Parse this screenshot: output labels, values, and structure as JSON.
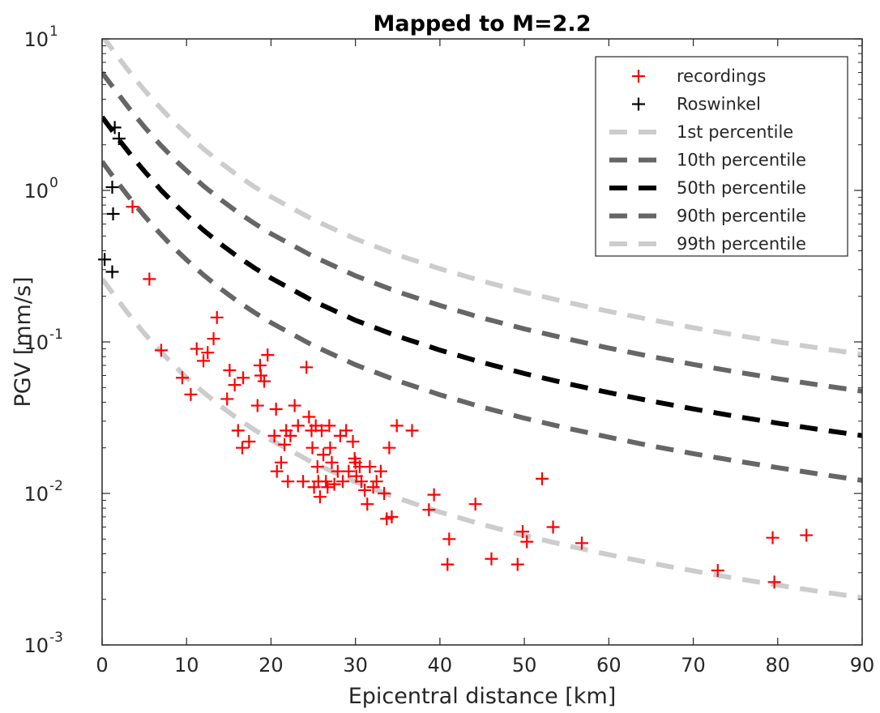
{
  "chart_data": {
    "type": "scatter",
    "title": "Mapped to M=2.2",
    "xlabel": "Epicentral distance [km]",
    "ylabel": "PGV [mm/s]",
    "xlim": [
      0,
      90
    ],
    "ylim": [
      0.001,
      10
    ],
    "yscale": "log",
    "grid": false,
    "legend_position": "top-right",
    "x_ticks": [
      0,
      10,
      20,
      30,
      40,
      50,
      60,
      70,
      80,
      90
    ],
    "y_ticks": [
      {
        "value": 10,
        "base": "10",
        "exp": "1"
      },
      {
        "value": 1,
        "base": "10",
        "exp": "0"
      },
      {
        "value": 0.1,
        "base": "10",
        "exp": "-1"
      },
      {
        "value": 0.01,
        "base": "10",
        "exp": "-2"
      },
      {
        "value": 0.001,
        "base": "10",
        "exp": "-3"
      }
    ],
    "series": [
      {
        "name": "recordings",
        "kind": "marker",
        "color": "#ff0000",
        "x": [
          3.6,
          5.6,
          7.0,
          9.5,
          10.5,
          11.2,
          12.0,
          12.5,
          13.2,
          13.6,
          14.8,
          15.1,
          15.7,
          16.1,
          16.6,
          16.7,
          17.4,
          18.4,
          18.7,
          18.8,
          19.2,
          19.6,
          20.4,
          20.6,
          20.7,
          21.2,
          21.6,
          21.8,
          22.0,
          22.3,
          22.8,
          23.2,
          23.8,
          24.2,
          24.5,
          24.8,
          24.9,
          25.1,
          25.3,
          25.5,
          25.6,
          25.8,
          26.0,
          26.2,
          26.5,
          26.7,
          26.9,
          27.0,
          27.2,
          27.5,
          27.9,
          28.2,
          28.5,
          28.9,
          29.2,
          29.7,
          29.9,
          30.0,
          30.1,
          30.5,
          30.7,
          31.1,
          31.4,
          31.7,
          32.1,
          32.5,
          33.0,
          33.4,
          33.7,
          34.0,
          34.3,
          34.9,
          36.7,
          38.7,
          39.3,
          41.1,
          40.9,
          44.2,
          46.1,
          49.2,
          49.8,
          50.3,
          52.1,
          53.4,
          56.8,
          72.9,
          79.4,
          79.6,
          83.4
        ],
        "y": [
          0.78,
          0.26,
          0.088,
          0.058,
          0.045,
          0.09,
          0.075,
          0.085,
          0.105,
          0.145,
          0.042,
          0.065,
          0.052,
          0.026,
          0.02,
          0.058,
          0.022,
          0.038,
          0.07,
          0.06,
          0.055,
          0.082,
          0.024,
          0.036,
          0.014,
          0.016,
          0.021,
          0.026,
          0.012,
          0.024,
          0.038,
          0.028,
          0.012,
          0.068,
          0.032,
          0.026,
          0.02,
          0.011,
          0.028,
          0.015,
          0.012,
          0.0095,
          0.026,
          0.018,
          0.012,
          0.011,
          0.028,
          0.02,
          0.016,
          0.0115,
          0.014,
          0.024,
          0.012,
          0.026,
          0.014,
          0.022,
          0.017,
          0.016,
          0.013,
          0.015,
          0.012,
          0.0105,
          0.0085,
          0.015,
          0.011,
          0.012,
          0.014,
          0.01,
          0.0068,
          0.02,
          0.007,
          0.028,
          0.026,
          0.0078,
          0.0098,
          0.005,
          0.0034,
          0.0085,
          0.0037,
          0.0034,
          0.0056,
          0.0048,
          0.0125,
          0.006,
          0.0047,
          0.0031,
          0.0051,
          0.0026,
          0.0053
        ]
      },
      {
        "name": "Roswinkel",
        "kind": "marker",
        "color": "#000000",
        "x": [
          1.5,
          2.0,
          1.2,
          1.3,
          0.3,
          1.2
        ],
        "y": [
          2.6,
          2.2,
          1.05,
          0.7,
          0.35,
          0.29
        ]
      },
      {
        "name": "1st percentile",
        "kind": "line",
        "color": "#cccccc",
        "x": [
          0,
          0.5,
          1,
          2,
          3,
          4,
          5,
          6,
          7,
          8,
          9,
          10,
          12,
          14,
          16,
          18,
          20,
          25,
          30,
          35,
          40,
          45,
          50,
          55,
          60,
          65,
          70,
          75,
          80,
          85,
          90
        ],
        "y": [
          0.26,
          0.239,
          0.219,
          0.185,
          0.156,
          0.133,
          0.114,
          0.0985,
          0.0856,
          0.0749,
          0.066,
          0.0584,
          0.0465,
          0.0378,
          0.0313,
          0.0264,
          0.0225,
          0.0159,
          0.0119,
          0.00931,
          0.00753,
          0.00624,
          0.00528,
          0.00453,
          0.00394,
          0.00347,
          0.00308,
          0.00275,
          0.00248,
          0.00225,
          0.00205
        ]
      },
      {
        "name": "10th percentile",
        "kind": "line",
        "color": "#666666",
        "x": [
          0,
          0.5,
          1,
          2,
          3,
          4,
          5,
          6,
          7,
          8,
          9,
          10,
          12,
          14,
          16,
          18,
          20,
          25,
          30,
          35,
          40,
          45,
          50,
          55,
          60,
          65,
          70,
          75,
          80,
          85,
          90
        ],
        "y": [
          1.55,
          1.42,
          1.3,
          1.1,
          0.93,
          0.792,
          0.68,
          0.587,
          0.51,
          0.446,
          0.393,
          0.348,
          0.277,
          0.225,
          0.186,
          0.157,
          0.134,
          0.0946,
          0.0707,
          0.0554,
          0.0448,
          0.0371,
          0.0314,
          0.027,
          0.0235,
          0.0206,
          0.0183,
          0.0164,
          0.0148,
          0.0134,
          0.0122
        ]
      },
      {
        "name": "50th percentile",
        "kind": "line",
        "color": "#000000",
        "x": [
          0,
          0.5,
          1,
          2,
          3,
          4,
          5,
          6,
          7,
          8,
          9,
          10,
          12,
          14,
          16,
          18,
          20,
          25,
          30,
          35,
          40,
          45,
          50,
          55,
          60,
          65,
          70,
          75,
          80,
          85,
          90
        ],
        "y": [
          3.05,
          2.8,
          2.57,
          2.16,
          1.83,
          1.56,
          1.34,
          1.16,
          1.0,
          0.879,
          0.774,
          0.686,
          0.546,
          0.444,
          0.367,
          0.309,
          0.264,
          0.186,
          0.139,
          0.109,
          0.0883,
          0.0732,
          0.0619,
          0.0532,
          0.0463,
          0.0407,
          0.0361,
          0.0323,
          0.0291,
          0.0264,
          0.0241
        ]
      },
      {
        "name": "90th percentile",
        "kind": "line",
        "color": "#666666",
        "x": [
          0,
          0.5,
          1,
          2,
          3,
          4,
          5,
          6,
          7,
          8,
          9,
          10,
          12,
          14,
          16,
          18,
          20,
          25,
          30,
          35,
          40,
          45,
          50,
          55,
          60,
          65,
          70,
          75,
          80,
          85,
          90
        ],
        "y": [
          6.0,
          5.5,
          5.05,
          4.26,
          3.6,
          3.07,
          2.63,
          2.27,
          1.97,
          1.73,
          1.52,
          1.35,
          1.07,
          0.873,
          0.722,
          0.607,
          0.518,
          0.366,
          0.273,
          0.214,
          0.174,
          0.144,
          0.122,
          0.105,
          0.0911,
          0.0801,
          0.071,
          0.0635,
          0.0572,
          0.0519,
          0.0473
        ]
      },
      {
        "name": "99th percentile",
        "kind": "line",
        "color": "#cccccc",
        "x": [
          0,
          0.5,
          1,
          2,
          3,
          4,
          5,
          6,
          7,
          8,
          9,
          10,
          12,
          14,
          16,
          18,
          20,
          25,
          30,
          35,
          40,
          45,
          50,
          55,
          60,
          65,
          70,
          75,
          80,
          85,
          90
        ],
        "y": [
          10.5,
          9.63,
          8.84,
          7.45,
          6.3,
          5.37,
          4.6,
          3.98,
          3.46,
          3.02,
          2.66,
          2.36,
          1.88,
          1.53,
          1.26,
          1.06,
          0.907,
          0.64,
          0.479,
          0.375,
          0.304,
          0.252,
          0.213,
          0.183,
          0.159,
          0.14,
          0.124,
          0.111,
          0.1,
          0.0908,
          0.0828
        ]
      }
    ]
  }
}
